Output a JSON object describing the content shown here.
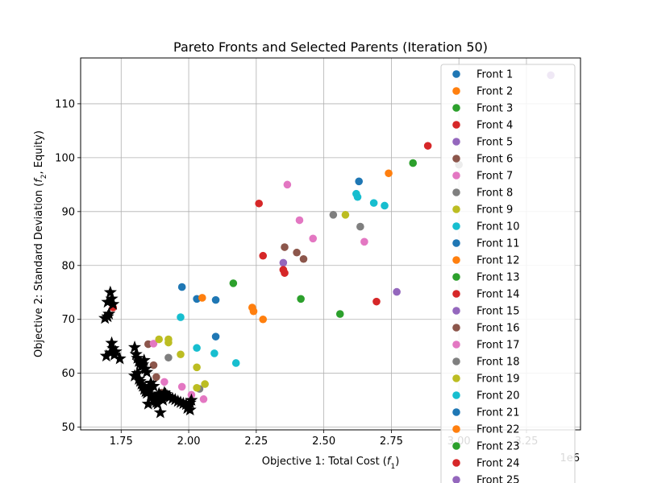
{
  "chart_data": {
    "type": "scatter",
    "title": "Pareto Fronts and Selected Parents (Iteration 50)",
    "xlabel": "Objective 1: Total Cost (f1)",
    "ylabel": "Objective 2: Standard Deviation (f2, Equity)",
    "x_scale_label": "1e6",
    "xlim": [
      1.6,
      3.45
    ],
    "ylim": [
      49.5,
      118.5
    ],
    "x_ticks": [
      1.75,
      2.0,
      2.25,
      2.5,
      2.75,
      3.0,
      3.25
    ],
    "x_tick_labels": [
      "1.75",
      "2.00",
      "2.25",
      "2.50",
      "2.75",
      "3.00",
      "3.25"
    ],
    "y_ticks": [
      50,
      60,
      70,
      80,
      90,
      100,
      110
    ],
    "y_tick_labels": [
      "50",
      "60",
      "70",
      "80",
      "90",
      "100",
      "110"
    ],
    "grid": true,
    "legend_position": "top-right",
    "series": [
      {
        "name": "Front 1",
        "color": "#1f77b4",
        "points": [
          [
            1.975,
            76.0
          ],
          [
            2.03,
            73.8
          ],
          [
            2.1,
            73.6
          ],
          [
            2.63,
            95.6
          ]
        ]
      },
      {
        "name": "Front 2",
        "color": "#ff7f0e",
        "points": [
          [
            2.05,
            74.0
          ],
          [
            2.24,
            71.5
          ],
          [
            2.275,
            70.0
          ],
          [
            2.74,
            97.1
          ]
        ]
      },
      {
        "name": "Front 3",
        "color": "#2ca02c",
        "points": [
          [
            2.165,
            76.7
          ],
          [
            2.415,
            73.8
          ],
          [
            2.56,
            71.0
          ],
          [
            2.83,
            99.0
          ]
        ]
      },
      {
        "name": "Front 4",
        "color": "#d62728",
        "points": [
          [
            2.26,
            91.5
          ],
          [
            2.275,
            81.8
          ],
          [
            2.355,
            78.6
          ],
          [
            2.695,
            73.3
          ],
          [
            2.885,
            102.2
          ]
        ]
      },
      {
        "name": "Front 5",
        "color": "#9467bd",
        "points": [
          [
            2.35,
            80.5
          ],
          [
            2.77,
            75.1
          ]
        ]
      },
      {
        "name": "Front 6",
        "color": "#8c564b",
        "points": [
          [
            2.355,
            83.4
          ],
          [
            2.4,
            82.4
          ],
          [
            2.425,
            81.2
          ],
          [
            1.85,
            65.4
          ],
          [
            1.87,
            61.5
          ]
        ]
      },
      {
        "name": "Front 7",
        "color": "#e377c2",
        "points": [
          [
            2.365,
            95.0
          ],
          [
            2.41,
            88.4
          ],
          [
            2.46,
            85.0
          ],
          [
            2.65,
            84.4
          ],
          [
            1.87,
            65.5
          ]
        ]
      },
      {
        "name": "Front 8",
        "color": "#7f7f7f",
        "points": [
          [
            2.535,
            89.4
          ],
          [
            2.635,
            87.2
          ],
          [
            1.925,
            62.9
          ]
        ]
      },
      {
        "name": "Front 9",
        "color": "#bcbd22",
        "points": [
          [
            2.58,
            89.4
          ],
          [
            1.89,
            66.3
          ],
          [
            1.925,
            66.3
          ],
          [
            1.925,
            65.7
          ],
          [
            1.97,
            63.5
          ]
        ]
      },
      {
        "name": "Front 10",
        "color": "#17becf",
        "points": [
          [
            2.62,
            93.3
          ],
          [
            2.625,
            92.7
          ],
          [
            2.685,
            91.6
          ],
          [
            2.725,
            91.1
          ],
          [
            1.97,
            70.4
          ],
          [
            2.03,
            64.7
          ],
          [
            2.095,
            63.7
          ],
          [
            2.175,
            61.9
          ]
        ]
      },
      {
        "name": "Front 11",
        "color": "#1f77b4",
        "points": [
          [
            2.1,
            66.8
          ]
        ]
      },
      {
        "name": "Front 12",
        "color": "#ff7f0e",
        "points": [
          [
            2.235,
            72.2
          ]
        ]
      },
      {
        "name": "Front 13",
        "color": "#2ca02c",
        "points": []
      },
      {
        "name": "Front 14",
        "color": "#d62728",
        "points": [
          [
            2.35,
            79.2
          ]
        ]
      },
      {
        "name": "Front 15",
        "color": "#9467bd",
        "points": []
      },
      {
        "name": "Front 16",
        "color": "#8c564b",
        "points": [
          [
            1.88,
            59.3
          ],
          [
            1.9,
            56.4
          ]
        ]
      },
      {
        "name": "Front 17",
        "color": "#e377c2",
        "points": [
          [
            1.91,
            58.4
          ],
          [
            1.975,
            57.5
          ],
          [
            2.055,
            55.2
          ],
          [
            2.01,
            56.0
          ]
        ]
      },
      {
        "name": "Front 18",
        "color": "#7f7f7f",
        "points": [
          [
            2.04,
            57.1
          ],
          [
            3.0,
            98.7
          ]
        ]
      },
      {
        "name": "Front 19",
        "color": "#bcbd22",
        "points": [
          [
            2.03,
            61.1
          ],
          [
            2.06,
            58.0
          ],
          [
            2.03,
            57.3
          ]
        ]
      },
      {
        "name": "Front 20",
        "color": "#17becf",
        "points": []
      },
      {
        "name": "Front 21",
        "color": "#1f77b4",
        "points": []
      },
      {
        "name": "Front 22",
        "color": "#ff7f0e",
        "points": []
      },
      {
        "name": "Front 23",
        "color": "#2ca02c",
        "points": []
      },
      {
        "name": "Front 24",
        "color": "#d62728",
        "points": [
          [
            1.72,
            72.2
          ]
        ]
      },
      {
        "name": "Front 25",
        "color": "#9467bd",
        "points": [
          [
            3.34,
            115.3
          ]
        ]
      }
    ],
    "selected_parents": {
      "marker": "star",
      "color": "#000000",
      "points": [
        [
          1.7,
          73.2
        ],
        [
          1.71,
          75.0
        ],
        [
          1.715,
          73.8
        ],
        [
          1.72,
          72.8
        ],
        [
          1.705,
          71.0
        ],
        [
          1.69,
          70.2
        ],
        [
          1.7,
          70.5
        ],
        [
          1.715,
          65.6
        ],
        [
          1.72,
          64.6
        ],
        [
          1.71,
          63.8
        ],
        [
          1.695,
          63.2
        ],
        [
          1.725,
          63.4
        ],
        [
          1.73,
          64.0
        ],
        [
          1.745,
          62.7
        ],
        [
          1.8,
          64.8
        ],
        [
          1.805,
          63.5
        ],
        [
          1.81,
          62.8
        ],
        [
          1.815,
          62.2
        ],
        [
          1.82,
          61.8
        ],
        [
          1.825,
          61.2
        ],
        [
          1.83,
          61.6
        ],
        [
          1.835,
          62.4
        ],
        [
          1.84,
          60.8
        ],
        [
          1.845,
          60.2
        ],
        [
          1.81,
          60.0
        ],
        [
          1.8,
          59.5
        ],
        [
          1.815,
          58.9
        ],
        [
          1.82,
          58.5
        ],
        [
          1.825,
          58.0
        ],
        [
          1.83,
          57.6
        ],
        [
          1.835,
          57.0
        ],
        [
          1.84,
          56.6
        ],
        [
          1.845,
          56.3
        ],
        [
          1.85,
          57.2
        ],
        [
          1.855,
          56.8
        ],
        [
          1.86,
          56.0
        ],
        [
          1.865,
          55.6
        ],
        [
          1.87,
          55.2
        ],
        [
          1.875,
          54.9
        ],
        [
          1.88,
          54.6
        ],
        [
          1.885,
          54.3
        ],
        [
          1.89,
          56.2
        ],
        [
          1.895,
          55.8
        ],
        [
          1.9,
          55.4
        ],
        [
          1.905,
          55.0
        ],
        [
          1.91,
          56.4
        ],
        [
          1.915,
          56.1
        ],
        [
          1.92,
          55.8
        ],
        [
          1.93,
          55.6
        ],
        [
          1.94,
          55.3
        ],
        [
          1.95,
          55.1
        ],
        [
          1.96,
          54.8
        ],
        [
          1.97,
          54.6
        ],
        [
          1.98,
          54.4
        ],
        [
          1.99,
          54.2
        ],
        [
          2.0,
          53.9
        ],
        [
          2.005,
          54.5
        ],
        [
          2.01,
          55.0
        ],
        [
          1.995,
          53.5
        ],
        [
          2.005,
          53.2
        ],
        [
          1.895,
          52.7
        ],
        [
          1.85,
          54.3
        ],
        [
          1.87,
          57.6
        ],
        [
          1.86,
          58.2
        ]
      ]
    }
  }
}
